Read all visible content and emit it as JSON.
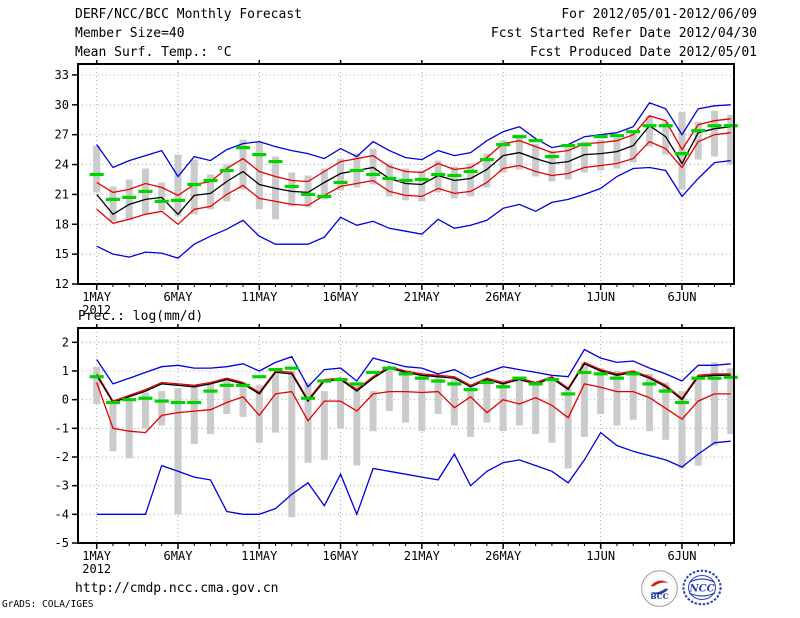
{
  "header": {
    "title": "DERF/NCC/BCC Monthly Forecast",
    "member_size": "Member Size=40",
    "for_range": "For 2012/05/01-2012/06/09",
    "fcst_started": "Fcst Started Refer Date 2012/04/30",
    "fcst_produced": "Fcst Produced Date 2012/05/01"
  },
  "footer": {
    "url": "http://cmdp.ncc.cma.gov.cn",
    "grads_credit": "GrADS: COLA/IGES",
    "logos": [
      {
        "name": "bcc-logo",
        "label": "BCC",
        "color": "#16337f",
        "red": "#cc2127",
        "blue": "#2b3f9e"
      },
      {
        "name": "ncc-logo",
        "label": "NCC",
        "color": "#2a3fb8"
      }
    ]
  },
  "colors": {
    "ensemble_minmax": "#0000e0",
    "spread_line": "#e60000",
    "ensemble_mean": "#000000",
    "observation": "#00d400",
    "spread_bar": "#cbcbcb",
    "grid": "#a8a8a8"
  },
  "chart_data": [
    {
      "type": "line",
      "title": "Mean Surf. Temp.: °C",
      "xlabel": "",
      "ylabel": "",
      "grid": true,
      "legend": "none",
      "n_points": 40,
      "xlim": [
        -1.15,
        39.2
      ],
      "ylim": [
        12,
        34.1
      ],
      "yticks": [
        12,
        15,
        18,
        21,
        24,
        27,
        30,
        33
      ],
      "xticks": [
        {
          "day": 0,
          "label": "1MAY"
        },
        {
          "day": 5,
          "label": "6MAY"
        },
        {
          "day": 10,
          "label": "11MAY"
        },
        {
          "day": 15,
          "label": "16MAY"
        },
        {
          "day": 20,
          "label": "21MAY"
        },
        {
          "day": 25,
          "label": "26MAY"
        },
        {
          "day": 31,
          "label": "1JUN"
        },
        {
          "day": 36,
          "label": "6JUN"
        }
      ],
      "x_sub_label": "2012",
      "series": [
        {
          "name": "ensemble-max",
          "color": "#0000e0",
          "values": [
            26.0,
            23.7,
            24.4,
            24.9,
            25.4,
            22.8,
            24.8,
            24.4,
            25.5,
            26.1,
            26.3,
            25.8,
            25.4,
            25.1,
            24.6,
            25.6,
            24.8,
            26.3,
            25.4,
            24.7,
            24.5,
            25.4,
            24.9,
            25.2,
            26.4,
            27.3,
            27.8,
            26.6,
            25.7,
            26.0,
            26.8,
            27.0,
            27.2,
            27.8,
            30.2,
            29.6,
            27.0,
            29.6,
            29.9,
            30.0
          ]
        },
        {
          "name": "ensemble-min",
          "color": "#0000e0",
          "values": [
            15.8,
            15.0,
            14.7,
            15.2,
            15.1,
            14.6,
            16.0,
            16.8,
            17.5,
            18.4,
            16.8,
            16.0,
            16.0,
            16.0,
            16.7,
            18.7,
            17.9,
            18.3,
            17.6,
            17.3,
            17.0,
            18.5,
            17.6,
            17.9,
            18.4,
            19.6,
            20.0,
            19.3,
            20.2,
            20.5,
            21.0,
            21.6,
            22.8,
            23.6,
            23.7,
            23.4,
            20.8,
            22.6,
            24.2,
            24.4
          ]
        },
        {
          "name": "upper-spread",
          "color": "#e60000",
          "values": [
            22.2,
            21.2,
            21.5,
            22.1,
            21.7,
            20.9,
            22.0,
            22.3,
            23.6,
            24.6,
            23.3,
            22.8,
            22.4,
            22.3,
            23.3,
            24.3,
            24.6,
            24.9,
            23.8,
            23.3,
            23.2,
            24.1,
            23.5,
            23.7,
            24.7,
            26.1,
            26.4,
            25.8,
            25.2,
            25.4,
            26.1,
            26.2,
            26.4,
            27.0,
            28.9,
            28.4,
            25.5,
            28.0,
            28.4,
            28.6
          ]
        },
        {
          "name": "lower-spread",
          "color": "#e60000",
          "values": [
            19.5,
            18.1,
            18.5,
            19.0,
            19.3,
            18.0,
            19.5,
            19.8,
            21.0,
            21.9,
            20.6,
            20.3,
            20.0,
            19.9,
            20.9,
            21.8,
            22.1,
            22.4,
            21.3,
            20.9,
            20.8,
            21.6,
            21.1,
            21.3,
            22.2,
            23.6,
            23.9,
            23.3,
            22.9,
            23.1,
            23.7,
            23.9,
            24.1,
            24.6,
            26.3,
            25.6,
            23.7,
            26.3,
            27.0,
            27.2
          ]
        },
        {
          "name": "ensemble-mean",
          "color": "#000000",
          "values": [
            21.0,
            19.0,
            20.0,
            20.5,
            20.7,
            19.0,
            20.9,
            21.1,
            22.3,
            23.3,
            22.0,
            21.6,
            21.3,
            21.2,
            22.2,
            23.1,
            23.4,
            23.7,
            22.6,
            22.1,
            22.0,
            22.9,
            22.4,
            22.6,
            23.5,
            24.9,
            25.2,
            24.6,
            24.1,
            24.3,
            25.0,
            25.1,
            25.3,
            25.9,
            27.9,
            26.8,
            24.1,
            27.2,
            27.6,
            27.8
          ]
        }
      ],
      "observation_dashes": {
        "name": "observed-temp",
        "color": "#00d400",
        "values": [
          23.0,
          20.5,
          20.7,
          21.3,
          20.3,
          20.4,
          22.0,
          22.4,
          23.4,
          25.7,
          25.0,
          24.3,
          21.8,
          21.0,
          20.8,
          22.2,
          23.4,
          23.0,
          22.6,
          22.4,
          22.5,
          23.0,
          22.9,
          23.3,
          24.5,
          26.0,
          26.8,
          26.4,
          24.8,
          25.9,
          26.0,
          26.8,
          26.9,
          27.3,
          27.9,
          27.9,
          25.1,
          27.4,
          27.9,
          27.9
        ]
      },
      "spread_bars": {
        "name": "member-spread-bar",
        "color": "#cbcbcb",
        "top": [
          25.9,
          21.8,
          22.5,
          23.6,
          22.2,
          25.0,
          24.5,
          23.0,
          24.0,
          26.5,
          26.3,
          24.8,
          23.2,
          22.9,
          23.6,
          24.6,
          25.1,
          25.6,
          24.1,
          23.6,
          23.4,
          24.4,
          23.8,
          24.1,
          25.1,
          26.4,
          26.8,
          26.1,
          25.4,
          25.7,
          26.3,
          26.5,
          26.7,
          27.3,
          28.9,
          28.3,
          29.3,
          28.3,
          29.4,
          29.0
        ],
        "bottom": [
          21.2,
          18.3,
          18.4,
          19.0,
          19.4,
          18.8,
          19.0,
          19.5,
          20.3,
          21.5,
          19.5,
          18.5,
          19.8,
          19.7,
          20.5,
          21.4,
          21.7,
          22.0,
          20.8,
          20.4,
          20.3,
          21.2,
          20.6,
          20.8,
          21.7,
          23.2,
          23.5,
          22.8,
          22.3,
          22.5,
          23.2,
          23.4,
          23.6,
          24.2,
          25.8,
          25.0,
          21.5,
          24.5,
          24.8,
          24.0
        ]
      }
    },
    {
      "type": "line",
      "title": "Prec.: log(mm/d)",
      "xlabel": "",
      "ylabel": "",
      "grid": true,
      "legend": "none",
      "n_points": 40,
      "xlim": [
        -1.15,
        39.2
      ],
      "ylim": [
        -5,
        2.5
      ],
      "yticks": [
        -5,
        -4,
        -3,
        -2,
        -1,
        0,
        1,
        2
      ],
      "xticks": [
        {
          "day": 0,
          "label": "1MAY"
        },
        {
          "day": 5,
          "label": "6MAY"
        },
        {
          "day": 10,
          "label": "11MAY"
        },
        {
          "day": 15,
          "label": "16MAY"
        },
        {
          "day": 20,
          "label": "21MAY"
        },
        {
          "day": 25,
          "label": "26MAY"
        },
        {
          "day": 31,
          "label": "1JUN"
        },
        {
          "day": 36,
          "label": "6JUN"
        }
      ],
      "x_sub_label": "2012",
      "series": [
        {
          "name": "ensemble-max",
          "color": "#0000e0",
          "values": [
            1.4,
            0.55,
            0.75,
            0.95,
            1.15,
            1.2,
            1.1,
            1.1,
            1.15,
            1.25,
            1.0,
            1.3,
            1.5,
            0.45,
            1.05,
            1.1,
            0.65,
            1.45,
            1.3,
            1.15,
            1.1,
            0.9,
            1.05,
            0.75,
            0.95,
            1.15,
            1.05,
            0.95,
            0.85,
            0.8,
            1.75,
            1.45,
            1.3,
            1.35,
            1.1,
            0.9,
            0.65,
            1.2,
            1.2,
            1.25
          ]
        },
        {
          "name": "ensemble-min",
          "color": "#0000e0",
          "values": [
            -4.0,
            -4.0,
            -4.0,
            -4.0,
            -2.3,
            -2.5,
            -2.7,
            -2.8,
            -3.9,
            -4.0,
            -4.0,
            -3.8,
            -3.3,
            -2.9,
            -3.7,
            -2.6,
            -4.0,
            -2.4,
            -2.5,
            -2.6,
            -2.7,
            -2.8,
            -1.9,
            -3.0,
            -2.5,
            -2.2,
            -2.1,
            -2.3,
            -2.5,
            -2.9,
            -2.1,
            -1.15,
            -1.6,
            -1.8,
            -1.95,
            -2.1,
            -2.35,
            -1.9,
            -1.5,
            -1.45
          ]
        },
        {
          "name": "upper-spread",
          "color": "#e60000",
          "values": [
            0.9,
            -0.05,
            0.15,
            0.35,
            0.6,
            0.55,
            0.5,
            0.6,
            0.75,
            0.6,
            0.25,
            1.0,
            0.95,
            0.0,
            0.7,
            0.75,
            0.35,
            0.8,
            1.15,
            1.0,
            0.9,
            0.85,
            0.8,
            0.5,
            0.75,
            0.6,
            0.75,
            0.6,
            0.8,
            0.4,
            1.3,
            1.05,
            0.9,
            1.0,
            0.8,
            0.5,
            0.05,
            0.85,
            0.9,
            0.9
          ]
        },
        {
          "name": "lower-spread",
          "color": "#e60000",
          "values": [
            0.6,
            -1.0,
            -1.1,
            -1.15,
            -0.55,
            -0.45,
            -0.4,
            -0.35,
            -0.1,
            0.1,
            -0.55,
            0.2,
            0.28,
            -0.74,
            -0.05,
            -0.05,
            -0.4,
            0.2,
            0.28,
            0.28,
            0.25,
            0.28,
            -0.28,
            0.1,
            -0.45,
            0.0,
            -0.15,
            0.07,
            -0.2,
            -0.63,
            0.55,
            0.43,
            0.28,
            0.28,
            0.07,
            -0.3,
            -0.68,
            -0.05,
            0.2,
            0.2
          ]
        },
        {
          "name": "ensemble-mean",
          "color": "#000000",
          "values": [
            0.85,
            -0.1,
            0.1,
            0.3,
            0.55,
            0.5,
            0.45,
            0.55,
            0.7,
            0.55,
            0.2,
            0.95,
            0.9,
            -0.05,
            0.65,
            0.7,
            0.3,
            0.75,
            1.1,
            0.95,
            0.85,
            0.8,
            0.75,
            0.45,
            0.7,
            0.55,
            0.7,
            0.55,
            0.75,
            0.35,
            1.25,
            1.0,
            0.85,
            0.95,
            0.75,
            0.45,
            0.0,
            0.8,
            0.85,
            0.85
          ]
        }
      ],
      "observation_dashes": {
        "name": "observed-prec",
        "color": "#00d400",
        "values": [
          0.8,
          -0.1,
          0.0,
          0.05,
          -0.05,
          -0.1,
          -0.1,
          0.3,
          0.5,
          0.5,
          0.8,
          1.05,
          1.1,
          0.05,
          0.65,
          0.7,
          0.55,
          0.95,
          1.1,
          0.9,
          0.75,
          0.65,
          0.55,
          0.35,
          0.6,
          0.45,
          0.75,
          0.55,
          0.7,
          0.2,
          0.95,
          0.9,
          0.75,
          0.9,
          0.55,
          0.3,
          -0.1,
          0.75,
          0.75,
          0.78
        ]
      },
      "spread_bars": {
        "name": "member-spread-bar",
        "color": "#cbcbcb",
        "top": [
          1.15,
          -0.05,
          0.0,
          0.25,
          0.3,
          0.4,
          0.5,
          0.6,
          0.65,
          0.6,
          0.5,
          0.9,
          1.0,
          0.6,
          0.3,
          0.7,
          0.6,
          0.3,
          1.05,
          0.9,
          0.85,
          0.8,
          0.7,
          0.5,
          0.65,
          0.6,
          0.65,
          0.55,
          0.7,
          0.4,
          1.3,
          1.1,
          1.0,
          0.9,
          0.9,
          0.6,
          0.3,
          0.75,
          1.3,
          1.1
        ],
        "bottom": [
          -0.15,
          -1.8,
          -2.05,
          -1.0,
          -0.9,
          -4.0,
          -1.55,
          -1.2,
          -0.5,
          -0.6,
          -1.5,
          -1.15,
          -4.1,
          -2.2,
          -2.1,
          -1.0,
          -2.3,
          -1.1,
          -0.4,
          -0.8,
          -1.1,
          -0.5,
          -0.9,
          -1.3,
          -0.8,
          -1.1,
          -0.9,
          -1.2,
          -1.5,
          -2.4,
          -1.3,
          -0.5,
          -0.9,
          -0.7,
          -1.1,
          -1.4,
          -2.4,
          -2.3,
          -1.6,
          -1.2
        ]
      }
    }
  ]
}
